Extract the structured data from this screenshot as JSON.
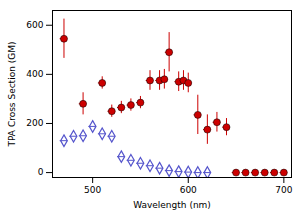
{
  "chart_data": {
    "type": "scatter",
    "xlabel": "Wavelength (nm)",
    "ylabel": "TPA Cross Section (GM)",
    "xlim": [
      458,
      708
    ],
    "ylim": [
      -20,
      660
    ],
    "xticks": [
      500,
      600,
      700
    ],
    "yticks": [
      0,
      200,
      400,
      600
    ],
    "grid": false,
    "series": [
      {
        "color": "#cc0000",
        "marker": "circle",
        "x": [
          470,
          490,
          510,
          520,
          530,
          540,
          550,
          560,
          570,
          575,
          580,
          590,
          595,
          600,
          610,
          620,
          630,
          640,
          650,
          660,
          670,
          680,
          690,
          700
        ],
        "values": [
          545,
          280,
          365,
          250,
          265,
          275,
          285,
          375,
          375,
          380,
          490,
          370,
          375,
          365,
          235,
          175,
          205,
          185,
          0,
          0,
          0,
          0,
          0,
          0
        ],
        "yerr": [
          80,
          45,
          25,
          25,
          25,
          25,
          25,
          40,
          40,
          40,
          80,
          40,
          40,
          40,
          80,
          60,
          40,
          35,
          3,
          3,
          3,
          3,
          3,
          3
        ],
        "xerr": [
          4,
          4,
          4,
          4,
          4,
          4,
          4,
          4,
          4,
          4,
          4,
          4,
          4,
          4,
          4,
          4,
          4,
          4,
          4,
          4,
          4,
          4,
          4,
          4
        ]
      },
      {
        "color": "#5555cc",
        "marker": "open_diamond",
        "x": [
          470,
          480,
          490,
          500,
          510,
          520,
          530,
          540,
          550,
          560,
          570,
          580,
          590,
          600,
          610,
          620
        ],
        "values": [
          130,
          148,
          150,
          188,
          158,
          148,
          65,
          50,
          38,
          28,
          18,
          8,
          4,
          2,
          0,
          0
        ],
        "xerr": [
          4,
          4,
          4,
          4,
          4,
          4,
          4,
          4,
          4,
          4,
          4,
          4,
          4,
          4,
          4,
          4
        ]
      }
    ]
  }
}
